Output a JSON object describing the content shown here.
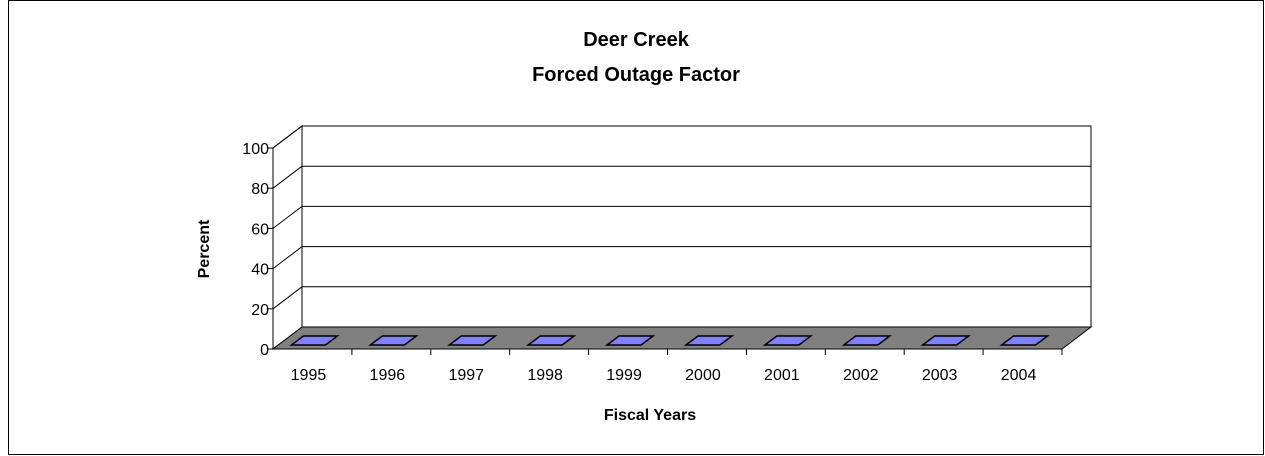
{
  "chart_data": {
    "type": "bar",
    "title": "Deer Creek",
    "subtitle": "Forced Outage Factor",
    "xlabel": "Fiscal Years",
    "ylabel": "Percent",
    "categories": [
      "1995",
      "1996",
      "1997",
      "1998",
      "1999",
      "2000",
      "2001",
      "2002",
      "2003",
      "2004"
    ],
    "values": [
      0,
      0,
      0,
      0,
      0,
      0,
      0,
      0,
      0,
      0
    ],
    "ylim": [
      0,
      100
    ],
    "yticks": [
      0,
      20,
      40,
      60,
      80,
      100
    ],
    "grid": true,
    "three_d": true,
    "colors": {
      "bar": "#8080ff",
      "floor": "#808080",
      "gridline": "#000000"
    }
  }
}
